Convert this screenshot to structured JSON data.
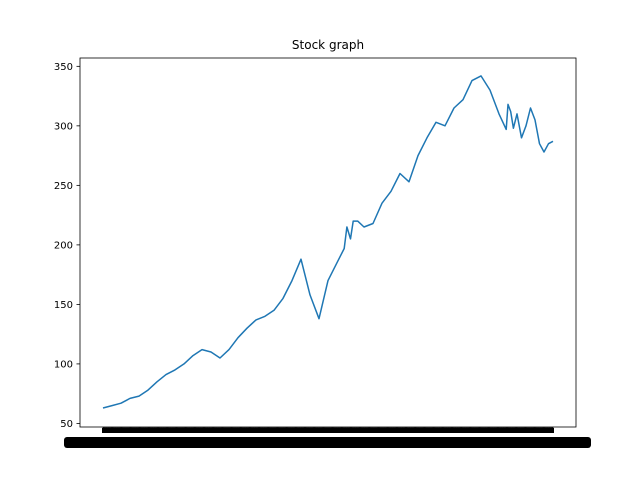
{
  "chart_data": {
    "type": "line",
    "title": "Stock graph",
    "xlabel": "",
    "ylabel": "",
    "ylim": [
      47,
      357
    ],
    "yticks": [
      50,
      100,
      150,
      200,
      250,
      300,
      350
    ],
    "grid": false,
    "legend": "none",
    "x_tick_labels_overlapping": true,
    "series": [
      {
        "color": "#1f77b4",
        "x": [
          0,
          10,
          20,
          30,
          40,
          50,
          60,
          70,
          80,
          90,
          100,
          110,
          120,
          130,
          140,
          150,
          160,
          170,
          180,
          190,
          200,
          210,
          220,
          230,
          240,
          250,
          260,
          268,
          271,
          275,
          278,
          283,
          290,
          300,
          310,
          320,
          330,
          340,
          350,
          360,
          370,
          380,
          390,
          400,
          410,
          420,
          430,
          440,
          448,
          450,
          453,
          456,
          460,
          465,
          470,
          475,
          480,
          485,
          490,
          495,
          500
        ],
        "values": [
          63,
          65,
          67,
          71,
          73,
          78,
          85,
          91,
          95,
          100,
          107,
          112,
          110,
          105,
          112,
          122,
          130,
          137,
          140,
          145,
          155,
          170,
          188,
          158,
          138,
          170,
          185,
          197,
          215,
          205,
          220,
          220,
          215,
          218,
          235,
          245,
          260,
          253,
          275,
          290,
          303,
          300,
          315,
          322,
          338,
          342,
          330,
          310,
          297,
          318,
          312,
          298,
          310,
          290,
          300,
          315,
          305,
          285,
          278,
          285,
          287
        ]
      }
    ]
  }
}
